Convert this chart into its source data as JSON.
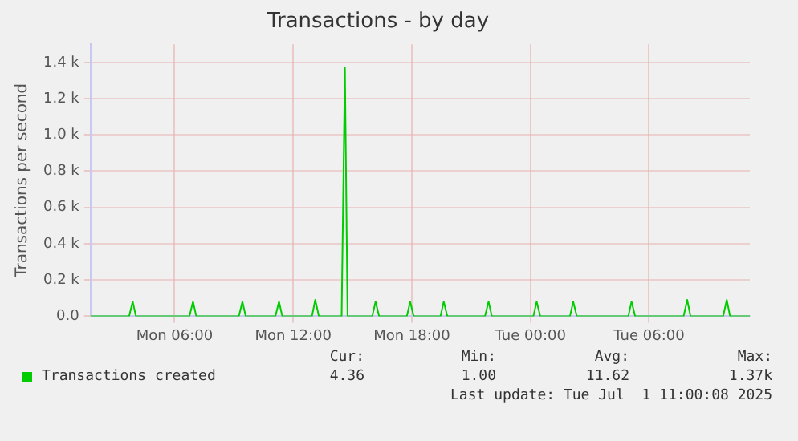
{
  "chart_data": {
    "type": "line",
    "title": "Transactions - by day",
    "ylabel": "Transactions per second",
    "legend": "bottom",
    "grid": true,
    "marker": "none",
    "xlim": [
      "2025-06-30T01:45",
      "2025-07-01T11:06"
    ],
    "ylim": [
      0,
      1500
    ],
    "xticks": [
      {
        "value": "2025-06-30T06:00",
        "label": "Mon 06:00"
      },
      {
        "value": "2025-06-30T12:00",
        "label": "Mon 12:00"
      },
      {
        "value": "2025-06-30T18:00",
        "label": "Mon 18:00"
      },
      {
        "value": "2025-07-01T00:00",
        "label": "Tue 00:00"
      },
      {
        "value": "2025-07-01T06:00",
        "label": "Tue 06:00"
      }
    ],
    "yticks": [
      {
        "value": 0,
        "label": "0.0"
      },
      {
        "value": 200,
        "label": "0.2 k"
      },
      {
        "value": 400,
        "label": "0.4 k"
      },
      {
        "value": 600,
        "label": "0.6 k"
      },
      {
        "value": 800,
        "label": "0.8 k"
      },
      {
        "value": 1000,
        "label": "1.0 k"
      },
      {
        "value": 1200,
        "label": "1.2 k"
      },
      {
        "value": 1400,
        "label": "1.4 k"
      }
    ],
    "series": [
      {
        "name": "Transactions created",
        "color": "#00cc00",
        "x": [
          "2025-06-30T01:45",
          "2025-06-30T03:42",
          "2025-06-30T03:53",
          "2025-06-30T04:03",
          "2025-06-30T06:45",
          "2025-06-30T06:56",
          "2025-06-30T07:06",
          "2025-06-30T09:15",
          "2025-06-30T09:26",
          "2025-06-30T09:36",
          "2025-06-30T11:06",
          "2025-06-30T11:17",
          "2025-06-30T11:27",
          "2025-06-30T12:57",
          "2025-06-30T13:07",
          "2025-06-30T13:18",
          "2025-06-30T14:27",
          "2025-06-30T14:37",
          "2025-06-30T14:45",
          "2025-06-30T16:00",
          "2025-06-30T16:10",
          "2025-06-30T16:21",
          "2025-06-30T17:45",
          "2025-06-30T17:55",
          "2025-06-30T18:06",
          "2025-06-30T19:27",
          "2025-06-30T19:37",
          "2025-06-30T19:48",
          "2025-06-30T21:42",
          "2025-06-30T21:53",
          "2025-06-30T22:03",
          "2025-07-01T00:09",
          "2025-07-01T00:19",
          "2025-07-01T00:30",
          "2025-07-01T02:00",
          "2025-07-01T02:10",
          "2025-07-01T02:21",
          "2025-07-01T04:57",
          "2025-07-01T05:07",
          "2025-07-01T05:18",
          "2025-07-01T07:45",
          "2025-07-01T07:56",
          "2025-07-01T08:06",
          "2025-07-01T09:45",
          "2025-07-01T09:56",
          "2025-07-01T10:06",
          "2025-07-01T11:06"
        ],
        "values": [
          0,
          0,
          80,
          0,
          0,
          80,
          0,
          0,
          80,
          0,
          0,
          80,
          0,
          0,
          90,
          0,
          0,
          1370,
          0,
          0,
          80,
          0,
          0,
          80,
          0,
          0,
          80,
          0,
          0,
          80,
          0,
          0,
          80,
          0,
          0,
          80,
          0,
          0,
          80,
          0,
          0,
          90,
          0,
          0,
          90,
          0,
          0
        ]
      }
    ],
    "annotations": [
      "Cur:",
      "Min:",
      "Avg:",
      "Max:",
      "4.36",
      "1.00",
      "11.62",
      "1.37k",
      "Last update: Tue Jul  1 11:00:08 2025"
    ]
  }
}
